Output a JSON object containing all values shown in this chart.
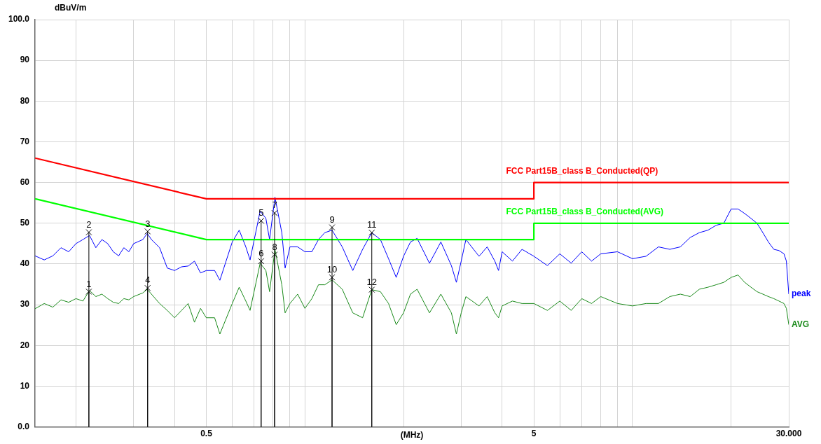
{
  "chart_data": {
    "type": "line",
    "xlabel": "(MHz)",
    "ylabel": "dBuV/m",
    "log": "x",
    "grid": true,
    "legend": false,
    "marker": "none",
    "line_style": "solid",
    "xlim": [
      0.15,
      30
    ],
    "ylim": [
      0,
      100
    ],
    "xticks": [
      {
        "value": 0.2,
        "label": null
      },
      {
        "value": 0.3,
        "label": null
      },
      {
        "value": 0.4,
        "label": null
      },
      0.5,
      {
        "value": 0.6,
        "label": null
      },
      {
        "value": 0.7,
        "label": null
      },
      {
        "value": 0.8,
        "label": null
      },
      {
        "value": 0.9,
        "label": null
      },
      {
        "value": 1,
        "label": null
      },
      {
        "value": 2,
        "label": null
      },
      {
        "value": 3,
        "label": null
      },
      {
        "value": 4,
        "label": null
      },
      5,
      {
        "value": 6,
        "label": null
      },
      {
        "value": 7,
        "label": null
      },
      {
        "value": 8,
        "label": null
      },
      {
        "value": 9,
        "label": null
      },
      {
        "value": 10,
        "label": null
      },
      {
        "value": 20,
        "label": null
      },
      {
        "value": 30,
        "label": "30.000"
      }
    ],
    "yticks": [
      {
        "value": 0,
        "label": "0.0"
      },
      10,
      20,
      30,
      40,
      50,
      60,
      70,
      80,
      90,
      {
        "value": 100,
        "label": "100.0"
      }
    ],
    "x": [
      0.15,
      0.16,
      0.17,
      0.18,
      0.19,
      0.2,
      0.21,
      0.22,
      0.23,
      0.24,
      0.25,
      0.26,
      0.27,
      0.28,
      0.29,
      0.3,
      0.32,
      0.33,
      0.34,
      0.36,
      0.38,
      0.4,
      0.42,
      0.44,
      0.46,
      0.48,
      0.5,
      0.53,
      0.55,
      0.6,
      0.63,
      0.66,
      0.68,
      0.73,
      0.76,
      0.78,
      0.81,
      0.85,
      0.87,
      0.9,
      0.95,
      1.0,
      1.05,
      1.1,
      1.15,
      1.21,
      1.3,
      1.4,
      1.5,
      1.6,
      1.7,
      1.8,
      1.9,
      2.0,
      2.1,
      2.2,
      2.4,
      2.6,
      2.8,
      2.9,
      3.0,
      3.1,
      3.4,
      3.6,
      3.8,
      3.9,
      4.0,
      4.3,
      4.6,
      5,
      5.5,
      6,
      6.5,
      7,
      7.5,
      8,
      9,
      10,
      11,
      12,
      13,
      14,
      15,
      16,
      17,
      18,
      19,
      20,
      21,
      22,
      23,
      24,
      25,
      26,
      27,
      28,
      29,
      29.5,
      30
    ],
    "series": [
      {
        "name": "FCC Part15B_class B_Conducted(QP)",
        "color": "#ff0000",
        "x": [
          0.15,
          0.5,
          5,
          5,
          30
        ],
        "values": [
          66,
          56,
          56,
          60,
          60
        ]
      },
      {
        "name": "FCC Part15B_class B_Conducted(AVG)",
        "color": "#00ff00",
        "x": [
          0.15,
          0.5,
          5,
          5,
          30
        ],
        "values": [
          56,
          46,
          46,
          50,
          50
        ]
      },
      {
        "name": "peak",
        "color": "#0000ff",
        "values": [
          42,
          41,
          42,
          44,
          43,
          45,
          46,
          47,
          44,
          46,
          45,
          43,
          42,
          44,
          43,
          45,
          46,
          47.5,
          46,
          44,
          39,
          38.4,
          39.3,
          39.5,
          40.7,
          37.8,
          38.4,
          38.4,
          36,
          45.4,
          48.3,
          44.2,
          41,
          53,
          51.2,
          46,
          56.4,
          47.7,
          39,
          44.2,
          44.2,
          43,
          43,
          46,
          47.7,
          48.3,
          44.2,
          38.4,
          43.6,
          47.7,
          46,
          41.3,
          36.7,
          41.9,
          45.4,
          46.3,
          40.2,
          45.4,
          39.6,
          35.5,
          40.7,
          46,
          41.9,
          44.2,
          40.7,
          38.4,
          43,
          40.7,
          43.6,
          41.9,
          39.6,
          42.5,
          40.2,
          43,
          40.7,
          42.5,
          43,
          41.3,
          41.9,
          44.2,
          43.6,
          44.2,
          46.5,
          47.7,
          48.3,
          49.5,
          50,
          53.5,
          53.5,
          52.4,
          51.2,
          50,
          47.7,
          45.4,
          43.6,
          43.3,
          42.5,
          40.7,
          32.6
        ]
      },
      {
        "name": "AVG",
        "color": "#1a8a1a",
        "values": [
          29,
          30.3,
          29.4,
          31.2,
          30.6,
          31.5,
          30.9,
          33.5,
          32,
          32.6,
          31.5,
          30.6,
          30.3,
          31.5,
          31.2,
          32,
          32.9,
          33.8,
          32.6,
          30.3,
          28.6,
          26.8,
          28.6,
          30.3,
          25.7,
          29.1,
          26.8,
          26.8,
          22.8,
          30.3,
          34.3,
          30.9,
          28.6,
          40.2,
          38.4,
          33.2,
          43.6,
          34.9,
          28,
          30.3,
          32.6,
          29.1,
          31.5,
          34.9,
          34.9,
          36.1,
          33.8,
          28,
          26.8,
          33.7,
          33.2,
          30.3,
          25.1,
          28,
          32.6,
          33.8,
          28,
          32.6,
          28,
          22.8,
          28,
          32,
          29.7,
          32,
          28,
          26.8,
          29.7,
          30.9,
          30.3,
          30.3,
          28.6,
          30.9,
          28.6,
          31.5,
          30.3,
          32,
          30.3,
          29.7,
          30.3,
          30.3,
          32,
          32.6,
          32,
          33.8,
          34.3,
          34.9,
          35.5,
          36.7,
          37.3,
          35.5,
          34.3,
          33.2,
          32.6,
          32,
          31.5,
          30.9,
          30.3,
          29.1,
          25.1
        ]
      }
    ],
    "annotations": [
      {
        "text": "1",
        "x": 0.219,
        "y": 33.2
      },
      {
        "text": "2",
        "x": 0.219,
        "y": 47.8
      },
      {
        "text": "3",
        "x": 0.331,
        "y": 48.0
      },
      {
        "text": "4",
        "x": 0.331,
        "y": 34.1
      },
      {
        "text": "5",
        "x": 0.735,
        "y": 50.6
      },
      {
        "text": "6",
        "x": 0.735,
        "y": 40.7
      },
      {
        "text": "7",
        "x": 0.808,
        "y": 52.5
      },
      {
        "text": "8",
        "x": 0.808,
        "y": 42.3
      },
      {
        "text": "9",
        "x": 1.21,
        "y": 49.0
      },
      {
        "text": "10",
        "x": 1.21,
        "y": 36.7
      },
      {
        "text": "11",
        "x": 1.6,
        "y": 47.7
      },
      {
        "text": "12",
        "x": 1.6,
        "y": 33.7
      }
    ]
  }
}
